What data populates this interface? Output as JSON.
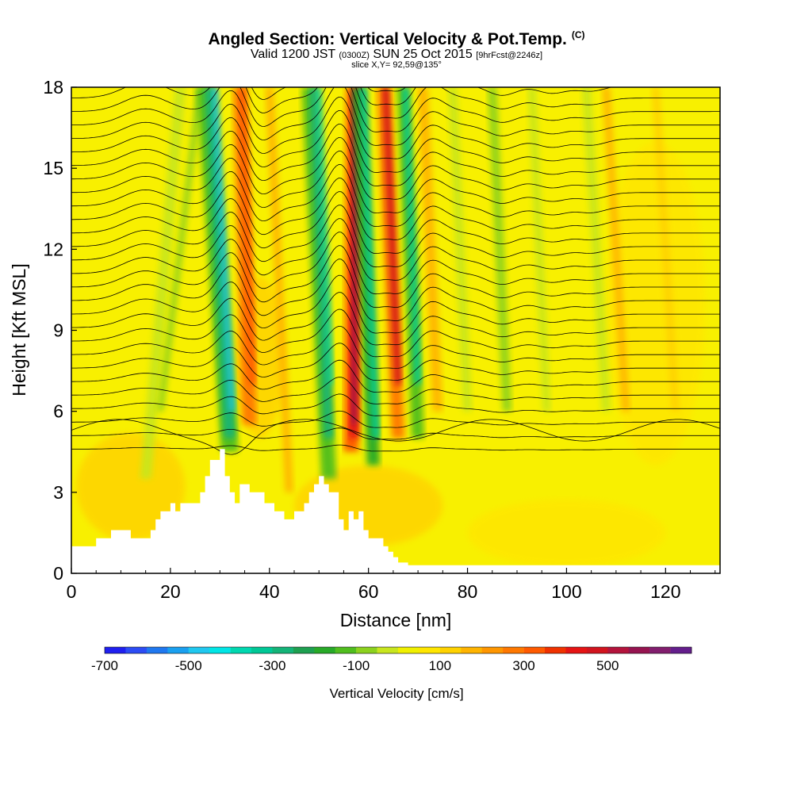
{
  "header": {
    "title": "Angled Section: Vertical Velocity & Pot.Temp.",
    "title_mark": "(C)",
    "valid_prefix": "Valid 1200 JST",
    "valid_utc": "(0300Z)",
    "valid_date": "SUN 25 Oct 2015",
    "forecast": "[9hrFcst@2246z]",
    "slice": "slice X,Y= 92,59@135°"
  },
  "chart_data": {
    "type": "heatmap",
    "xlabel": "Distance [nm]",
    "ylabel": "Height [Kft MSL]",
    "xlim": [
      0,
      131
    ],
    "ylim": [
      0,
      18
    ],
    "xticks": [
      0,
      20,
      40,
      60,
      80,
      100,
      120
    ],
    "yticks": [
      0,
      3,
      6,
      9,
      12,
      15,
      18
    ],
    "terrain": {
      "x": [
        0,
        5,
        5,
        8,
        8,
        12,
        12,
        16,
        16,
        17,
        17,
        18,
        18,
        20,
        20,
        21,
        21,
        22,
        22,
        26,
        26,
        27,
        27,
        28,
        28,
        30,
        30,
        31,
        31,
        32,
        32,
        33,
        33,
        34,
        34,
        36,
        36,
        39,
        39,
        41,
        41,
        43,
        43,
        45,
        45,
        47,
        47,
        48,
        48,
        49,
        49,
        50,
        50,
        51,
        51,
        52,
        52,
        54,
        54,
        55,
        55,
        56,
        56,
        57,
        57,
        58,
        58,
        59,
        59,
        60,
        60,
        61,
        61,
        62,
        62,
        63,
        63,
        64,
        64,
        65,
        65,
        66,
        66,
        67,
        67,
        68,
        68,
        69,
        69,
        71,
        71,
        131
      ],
      "y": [
        1.0,
        1.0,
        1.3,
        1.3,
        1.6,
        1.6,
        1.3,
        1.3,
        1.6,
        1.6,
        2.0,
        2.0,
        2.3,
        2.3,
        2.6,
        2.6,
        2.3,
        2.3,
        2.6,
        2.6,
        3.0,
        3.0,
        3.6,
        3.6,
        4.2,
        4.2,
        4.6,
        4.6,
        3.6,
        3.6,
        3.0,
        3.0,
        2.6,
        2.6,
        3.3,
        3.3,
        3.0,
        3.0,
        2.6,
        2.6,
        2.3,
        2.3,
        2.0,
        2.0,
        2.3,
        2.3,
        2.6,
        2.6,
        3.0,
        3.0,
        3.3,
        3.3,
        3.6,
        3.6,
        3.3,
        3.3,
        3.0,
        3.0,
        2.0,
        2.0,
        1.6,
        1.6,
        2.3,
        2.3,
        2.0,
        2.0,
        2.3,
        2.3,
        1.6,
        1.6,
        1.3,
        1.3,
        1.3,
        1.3,
        1.3,
        1.3,
        1.0,
        1.0,
        0.8,
        0.8,
        0.6,
        0.6,
        0.4,
        0.4,
        0.4,
        0.4,
        0.3,
        0.3,
        0.3,
        0.3,
        0.3,
        0.3
      ]
    },
    "colorbar": {
      "label": "Vertical Velocity [cm/s]",
      "tick_values": [
        -700,
        -500,
        -300,
        -100,
        100,
        300,
        500
      ],
      "bins": [
        -700,
        -650,
        -600,
        -550,
        -500,
        -450,
        -400,
        -350,
        -300,
        -250,
        -200,
        -150,
        -100,
        -50,
        0,
        50,
        100,
        150,
        200,
        250,
        300,
        350,
        400,
        450,
        500,
        550,
        600,
        650,
        700
      ],
      "colors": [
        "#1f1ff0",
        "#2c4cf5",
        "#1f78f0",
        "#1aa0f0",
        "#20c8f0",
        "#00e6e6",
        "#00d8b0",
        "#00c896",
        "#14b478",
        "#1ea050",
        "#28aa28",
        "#50be1e",
        "#8cd21e",
        "#c8e61e",
        "#f0f000",
        "#ffe600",
        "#ffd200",
        "#ffb400",
        "#ff9600",
        "#ff7800",
        "#ff5a00",
        "#f03200",
        "#e61414",
        "#d2141e",
        "#b4143c",
        "#961450",
        "#821e6e",
        "#641e8c"
      ]
    }
  }
}
